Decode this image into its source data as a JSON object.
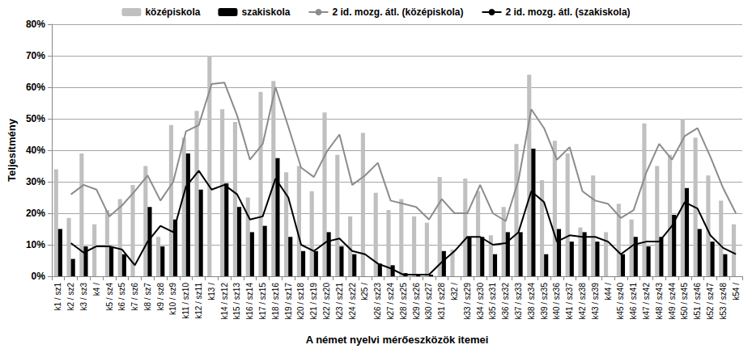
{
  "chart_data": {
    "type": "bar",
    "xlabel": "A német nyelvi mérőeszközök itemei",
    "ylabel": "Teljesítmény",
    "categories": [
      "k1 / sz1",
      "k2 / sz2",
      "k3 / sz3",
      "k4 /",
      "k5 / sz4",
      "k6 / sz5",
      "k7 / sz6",
      "k8 / sz7",
      "k9 / sz8",
      "k10 / sz9",
      "k11 / sz10",
      "k12 / sz11",
      "k13 /",
      "k14 / sz12",
      "k15 / sz13",
      "k16 / sz14",
      "k17 / sz15",
      "k18 / sz16",
      "k19 / sz17",
      "k20 / sz18",
      "k21 / sz19",
      "k22 / sz20",
      "k23 / sz21",
      "k24 / sz22",
      "k25 /",
      "k26 / sz23",
      "k27 / sz24",
      "k28 / sz25",
      "k29 / sz26",
      "k30 / sz27",
      "k31 / sz28",
      "k32 /",
      "k33 / sz29",
      "k34 / sz30",
      "k35 / sz31",
      "k36 / sz32",
      "k37 / sz33",
      "k38 / sz34",
      "k39 / sz35",
      "k40 / sz36",
      "k41 / sz37",
      "k42 / sz38",
      "k43 / sz39",
      "k44 /",
      "k45 / sz40",
      "k46 / sz41",
      "k47 / sz42",
      "k48 / sz43",
      "k49 / sz44",
      "k50 / sz45",
      "k51 / sz46",
      "k52 / sz47",
      "k53 / sz48",
      "k54 /"
    ],
    "series": [
      {
        "name": "középiskola",
        "type": "bar",
        "color": "#c0c0c0",
        "values": [
          34,
          18.5,
          39,
          16.5,
          21,
          24.5,
          29,
          35,
          12.5,
          48,
          44,
          52.5,
          70,
          53,
          49,
          25,
          58.5,
          62,
          33,
          35,
          27,
          52,
          38.5,
          19,
          45.5,
          26.5,
          21,
          24.5,
          19,
          17,
          31.5,
          8.5,
          31,
          27,
          13,
          22,
          42,
          64,
          30.5,
          43,
          39,
          15.5,
          32,
          14,
          23,
          18,
          48.5,
          35,
          38.5,
          50,
          44,
          32,
          24,
          16.5
        ]
      },
      {
        "name": "szakiskola",
        "type": "bar",
        "color": "#000000",
        "values": [
          15,
          5.5,
          9.5,
          null,
          9.5,
          7,
          0,
          22,
          9.5,
          18,
          39,
          27.5,
          null,
          29.5,
          22,
          14,
          16,
          37.5,
          12.5,
          8,
          8,
          14,
          9.5,
          7,
          null,
          4,
          3.5,
          1,
          0.5,
          0.5,
          8,
          null,
          12.5,
          12.5,
          7,
          14,
          14,
          40.5,
          7,
          15,
          11,
          14,
          11,
          null,
          7,
          12.5,
          9.5,
          12.5,
          19.5,
          28,
          15,
          11,
          7,
          null
        ]
      },
      {
        "name": "2 id. mozg. átl. (középiskola)",
        "type": "line",
        "color": "#8c8c8c",
        "marker": "none",
        "values": [
          null,
          26,
          29,
          27.5,
          19,
          22.5,
          27,
          32,
          24,
          30,
          46,
          48,
          61,
          61.5,
          51,
          37,
          42,
          60,
          47.5,
          34.5,
          31.5,
          39.5,
          45,
          29,
          32,
          36,
          24,
          23,
          22,
          18,
          24.5,
          20,
          20,
          29,
          20,
          17.5,
          30.5,
          53,
          47,
          37,
          41,
          27,
          24,
          23,
          18.5,
          21,
          33,
          42,
          37,
          44.5,
          47,
          38,
          28,
          20
        ]
      },
      {
        "name": "2 id. mozg. átl. (szakiskola)",
        "type": "line",
        "color": "#000000",
        "marker": "none",
        "values": [
          null,
          10.5,
          7.5,
          9.5,
          9.5,
          8.5,
          3.5,
          11,
          16,
          14,
          28.5,
          33.5,
          27.5,
          29,
          26,
          18,
          19,
          31,
          25,
          10,
          8,
          11,
          12,
          8,
          7,
          4,
          2.5,
          0.5,
          0.5,
          0.5,
          4.5,
          8,
          12.5,
          12.5,
          10,
          10.5,
          14,
          27,
          23.5,
          11,
          13,
          12.5,
          12.5,
          11,
          7,
          10,
          11,
          11,
          16,
          23.5,
          21.5,
          13,
          9,
          7
        ]
      }
    ],
    "ylim": [
      0,
      80
    ],
    "yticks": [
      {
        "value": 0,
        "label": "0%"
      },
      {
        "value": 10,
        "label": "10%"
      },
      {
        "value": 20,
        "label": "20%"
      },
      {
        "value": 30,
        "label": "30%"
      },
      {
        "value": 40,
        "label": "40%"
      },
      {
        "value": 50,
        "label": "50%"
      },
      {
        "value": 60,
        "label": "60%"
      },
      {
        "value": 70,
        "label": "70%"
      },
      {
        "value": 80,
        "label": "80%"
      }
    ],
    "grid": true,
    "legend": "top"
  }
}
